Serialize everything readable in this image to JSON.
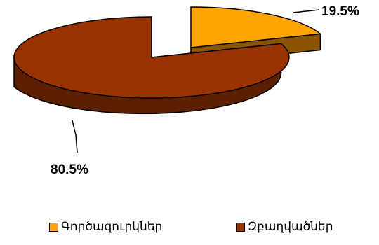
{
  "chart_data": {
    "type": "pie",
    "style": "3d-exploded",
    "slices": [
      {
        "label": "Գործազուրկներ",
        "value": 19.5,
        "value_label": "19.5%",
        "color": "#FFA500",
        "side_color": "#8A5400"
      },
      {
        "label": "Զբաղվածներ",
        "value": 80.5,
        "value_label": "80.5%",
        "color": "#993300",
        "side_color": "#5C2000"
      }
    ],
    "legend_position": "bottom"
  }
}
